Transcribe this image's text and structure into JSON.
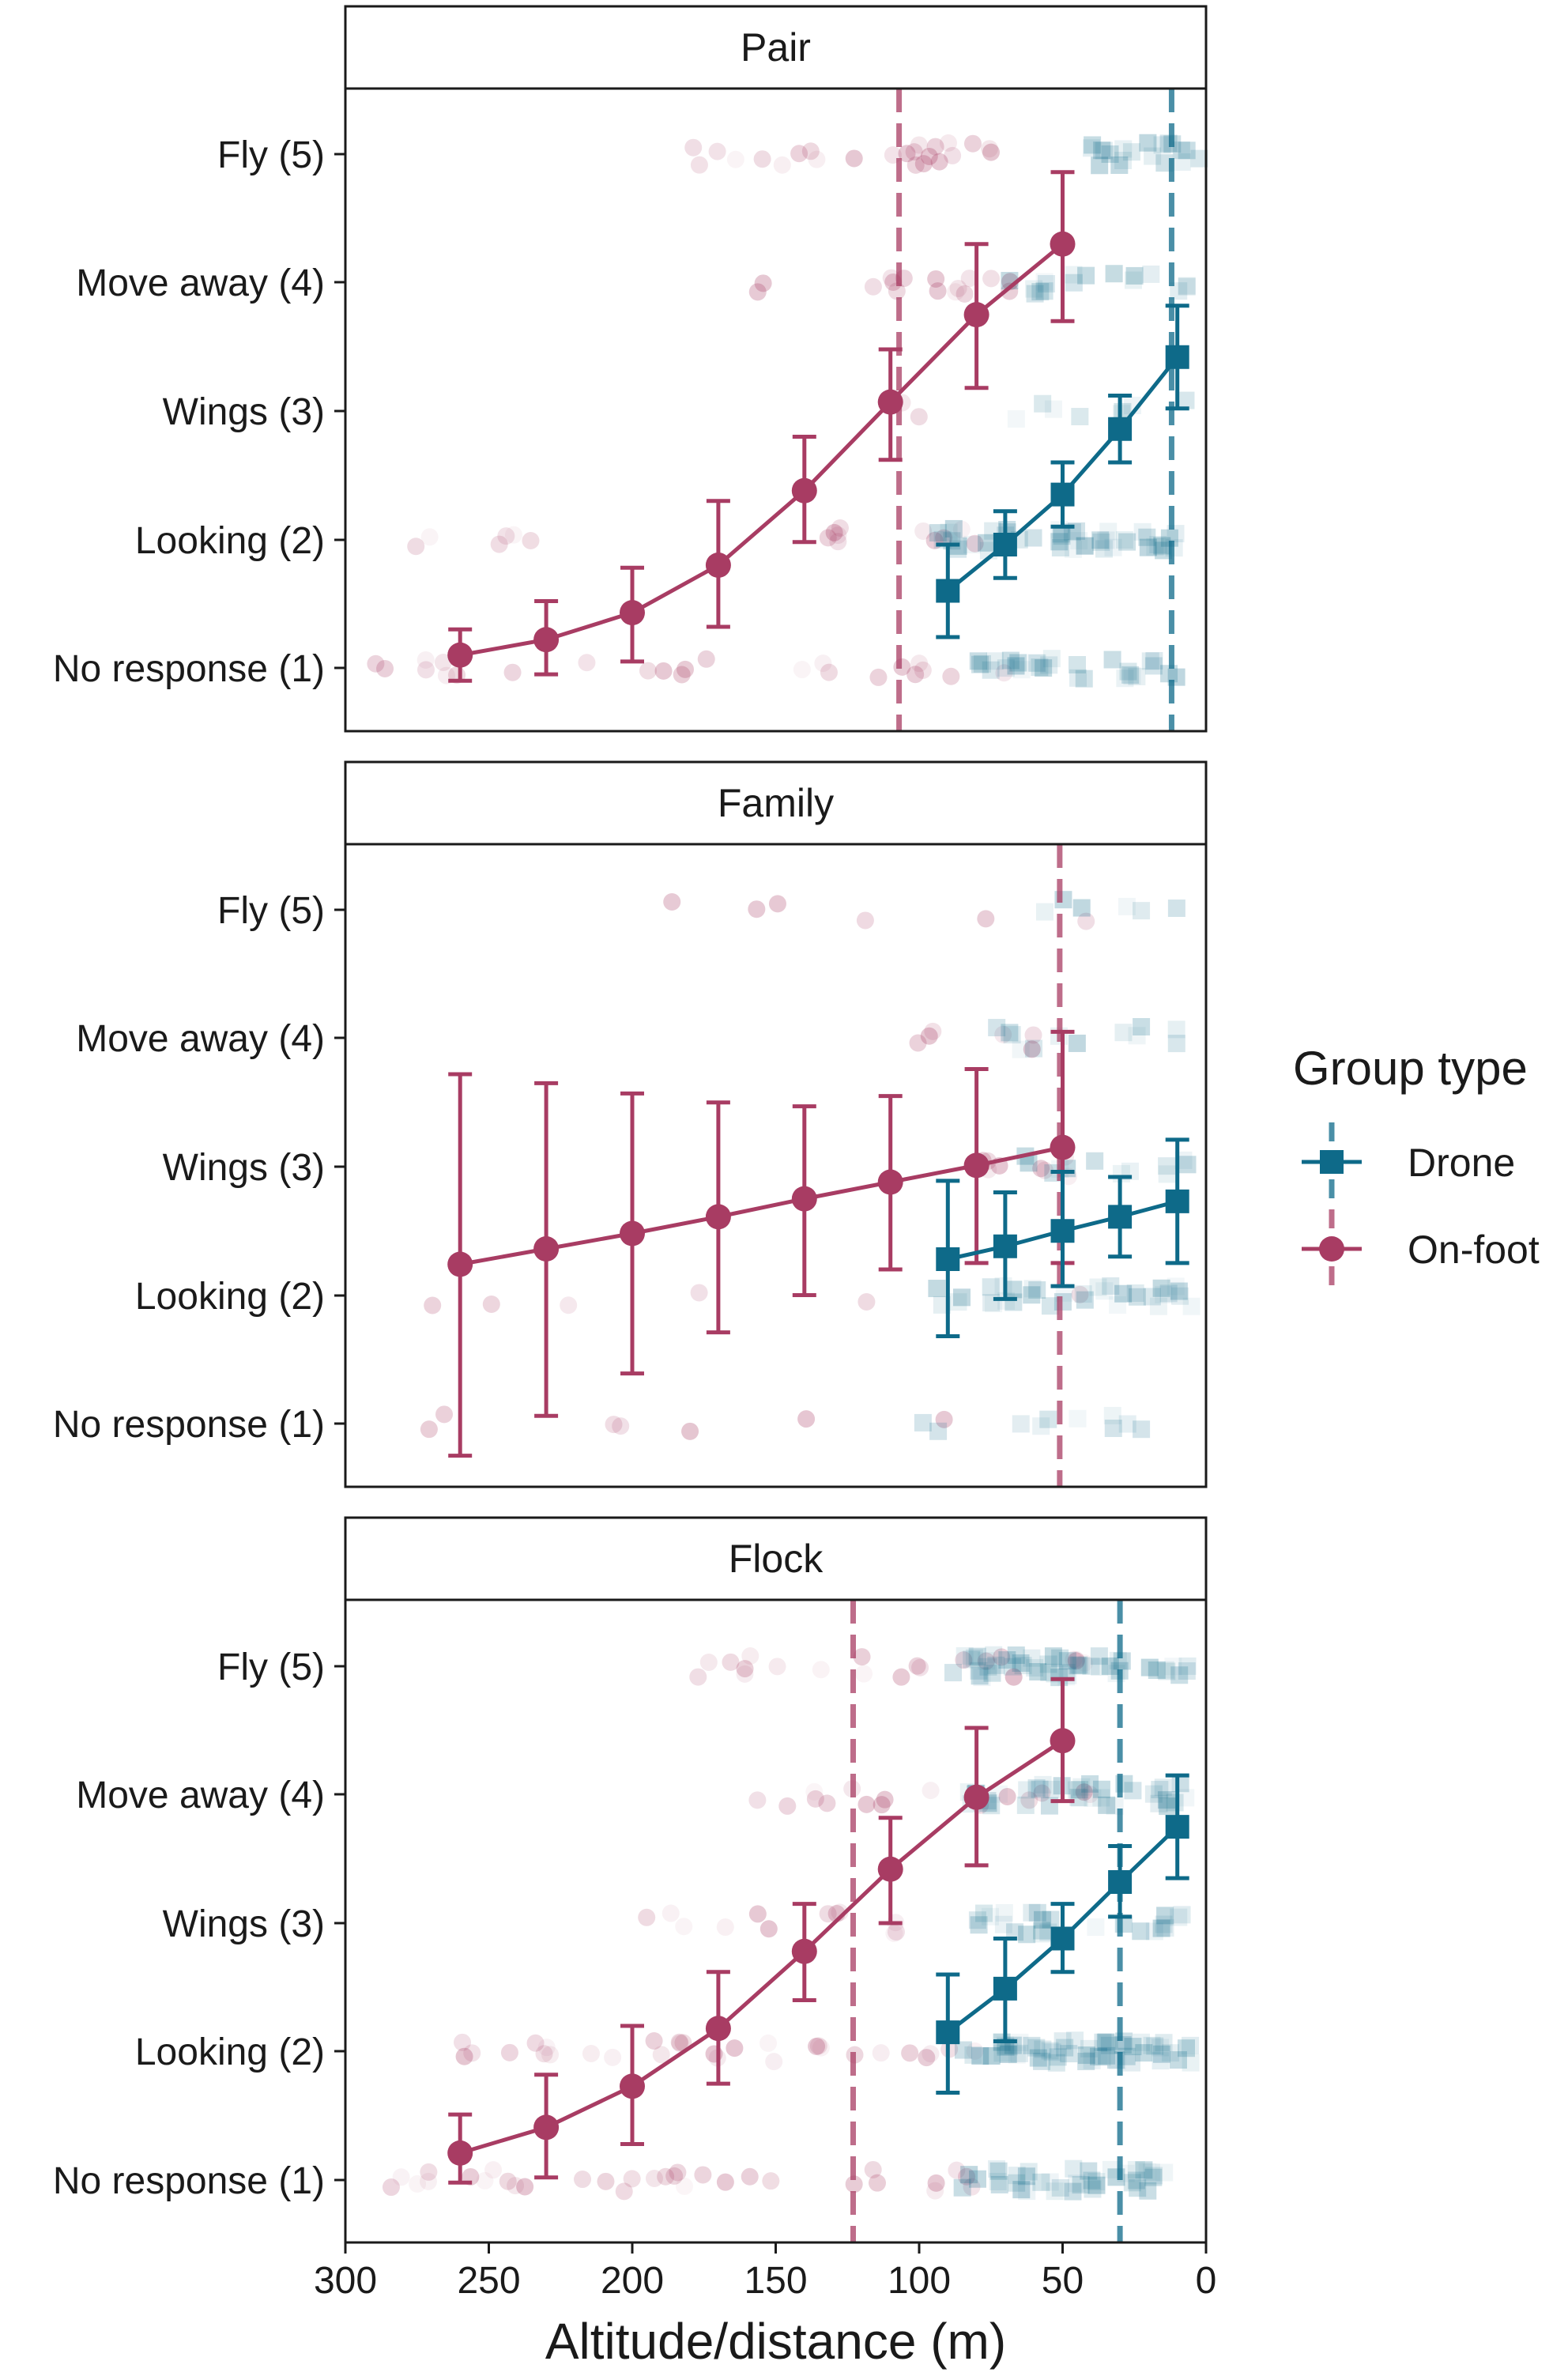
{
  "chart_data": {
    "type": "line",
    "xlabel": "Altitude/distance (m)",
    "x_ticks": [
      "300",
      "250",
      "200",
      "150",
      "100",
      "50",
      "0"
    ],
    "xlim": [
      300,
      0
    ],
    "x_reversed": true,
    "y_ticks": [
      "No response (1)",
      "Looking (2)",
      "Wings (3)",
      "Move away (4)",
      "Fly (5)"
    ],
    "ylim": [
      0.55,
      5.5
    ],
    "legend": {
      "title": "Group type",
      "position": "right",
      "entries": [
        {
          "label": "Drone",
          "color": "#0e6a89",
          "marker": "square"
        },
        {
          "label": "On-foot",
          "color": "#a83c63",
          "marker": "circle"
        }
      ]
    },
    "colors": {
      "drone": "#0e6a89",
      "onfoot": "#a83c63"
    },
    "panels": [
      {
        "strip": "Pair",
        "vlines": {
          "onfoot": 107,
          "drone": 12
        },
        "series": [
          {
            "name": "On-foot",
            "x": [
              260,
              230,
              200,
              170,
              140,
              110,
              80,
              50
            ],
            "y": [
              1.1,
              1.22,
              1.43,
              1.8,
              2.38,
              3.07,
              3.75,
              4.3
            ],
            "lower": [
              0.9,
              0.95,
              1.05,
              1.32,
              1.98,
              2.62,
              3.18,
              3.7
            ],
            "upper": [
              1.3,
              1.52,
              1.78,
              2.3,
              2.8,
              3.48,
              4.3,
              4.86
            ]
          },
          {
            "name": "Drone",
            "x": [
              90,
              70,
              50,
              30,
              10
            ],
            "y": [
              1.6,
              1.96,
              2.35,
              2.86,
              3.42
            ],
            "lower": [
              1.24,
              1.7,
              2.1,
              2.6,
              3.02
            ],
            "upper": [
              1.96,
              2.22,
              2.6,
              3.12,
              3.82
            ]
          }
        ]
      },
      {
        "strip": "Family",
        "vlines": {
          "onfoot": 51
        },
        "series": [
          {
            "name": "On-foot",
            "x": [
              260,
              230,
              200,
              170,
              140,
              110,
              80,
              50
            ],
            "y": [
              2.24,
              2.36,
              2.48,
              2.61,
              2.75,
              2.88,
              3.01,
              3.15
            ],
            "lower": [
              0.75,
              1.06,
              1.39,
              1.71,
              2.0,
              2.2,
              2.25,
              2.25
            ],
            "upper": [
              3.72,
              3.65,
              3.57,
              3.5,
              3.47,
              3.55,
              3.76,
              4.05
            ]
          },
          {
            "name": "Drone",
            "x": [
              90,
              70,
              50,
              30,
              10
            ],
            "y": [
              2.28,
              2.38,
              2.5,
              2.61,
              2.73
            ],
            "lower": [
              1.68,
              1.97,
              2.07,
              2.3,
              2.25
            ],
            "upper": [
              2.89,
              2.8,
              2.96,
              2.92,
              3.21
            ]
          }
        ]
      },
      {
        "strip": "Flock",
        "vlines": {
          "onfoot": 123,
          "drone": 30
        },
        "series": [
          {
            "name": "On-foot",
            "x": [
              260,
              230,
              200,
              170,
              140,
              110,
              80,
              50
            ],
            "y": [
              1.21,
              1.41,
              1.73,
              2.18,
              2.78,
              3.42,
              3.98,
              4.42
            ],
            "lower": [
              0.98,
              1.02,
              1.28,
              1.75,
              2.4,
              3.0,
              3.45,
              3.95
            ],
            "upper": [
              1.51,
              1.82,
              2.2,
              2.62,
              3.15,
              3.82,
              4.52,
              4.9
            ]
          },
          {
            "name": "Drone",
            "x": [
              90,
              70,
              50,
              30,
              10
            ],
            "y": [
              2.15,
              2.49,
              2.88,
              3.32,
              3.75
            ],
            "lower": [
              1.68,
              2.08,
              2.62,
              3.05,
              3.35
            ],
            "upper": [
              2.6,
              2.88,
              3.15,
              3.6,
              4.15
            ]
          }
        ]
      }
    ]
  }
}
